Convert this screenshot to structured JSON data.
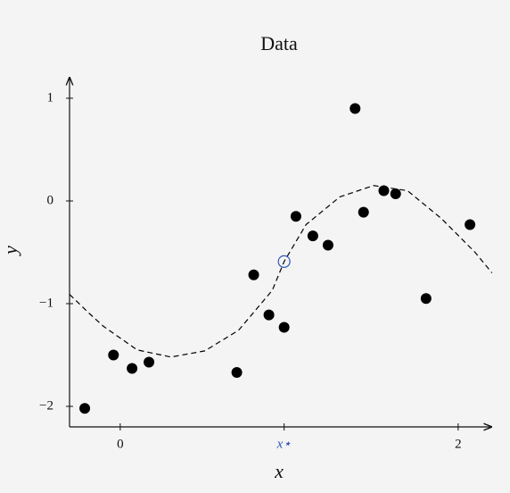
{
  "chart_data": {
    "type": "scatter",
    "title": "Data",
    "x_label": "x",
    "y_label": "y",
    "xlim": [
      -0.3,
      2.2
    ],
    "ylim": [
      -2.2,
      1.2
    ],
    "xticks": [
      0,
      {
        "value": 0.97,
        "label": "x⋆"
      },
      2
    ],
    "yticks": [
      {
        "value": -2,
        "label": "−2"
      },
      {
        "value": -1,
        "label": "−1"
      },
      0,
      1
    ],
    "series": [
      {
        "kind": "points",
        "color": "#000000",
        "x": [
          -0.21,
          -0.04,
          0.07,
          0.17,
          0.69,
          0.79,
          0.88,
          0.97,
          1.04,
          1.14,
          1.23,
          1.39,
          1.44,
          1.56,
          1.63,
          1.81,
          2.07
        ],
        "values": [
          -2.02,
          -1.5,
          -1.63,
          -1.57,
          -1.67,
          -0.72,
          -1.11,
          -1.23,
          -0.15,
          -0.34,
          -0.43,
          0.9,
          -0.11,
          0.1,
          0.07,
          -0.95,
          -0.23
        ]
      },
      {
        "kind": "dashed-line",
        "color": "#000000",
        "x": [
          -0.3,
          -0.18,
          -0.1,
          0.1,
          0.3,
          0.5,
          0.7,
          0.9,
          0.97,
          1.1,
          1.3,
          1.5,
          1.7,
          1.9,
          2.1,
          2.2
        ],
        "values": [
          -0.91,
          -1.1,
          -1.22,
          -1.45,
          -1.52,
          -1.46,
          -1.26,
          -0.87,
          -0.59,
          -0.23,
          0.04,
          0.15,
          0.1,
          -0.17,
          -0.5,
          -0.7
        ]
      },
      {
        "kind": "open-point",
        "color": "#3355bb",
        "x": [
          0.97
        ],
        "values": [
          -0.59
        ]
      }
    ],
    "highlight_tick_color": "#3355bb"
  }
}
